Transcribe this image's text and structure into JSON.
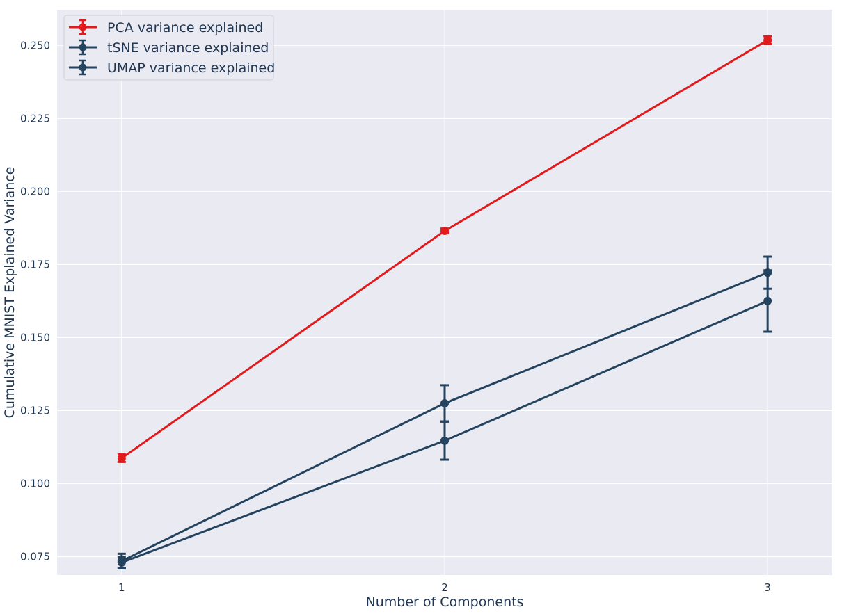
{
  "chart_data": {
    "type": "line",
    "xlabel": "Number of Components",
    "ylabel": "Cumulative MNIST Explained Variance",
    "x": [
      1,
      2,
      3
    ],
    "xticks": [
      "1",
      "2",
      "3"
    ],
    "xlim": [
      0.8,
      3.2
    ],
    "ylim": [
      0.0687,
      0.2622
    ],
    "yticks": [
      "0.075",
      "0.100",
      "0.125",
      "0.150",
      "0.175",
      "0.200",
      "0.225",
      "0.250"
    ],
    "yticks_values": [
      0.075,
      0.1,
      0.125,
      0.15,
      0.175,
      0.2,
      0.225,
      0.25
    ],
    "grid": true,
    "legend_position": "top-left",
    "series": [
      {
        "name": "PCA variance explained",
        "color": "#e31a1c",
        "values": [
          0.1087,
          0.1865,
          0.2518
        ],
        "errors": [
          0.0013,
          0.0008,
          0.0013
        ]
      },
      {
        "name": "tSNE variance explained",
        "color": "#24435f",
        "values": [
          0.0735,
          0.1275,
          0.1722
        ],
        "errors": [
          0.0025,
          0.0062,
          0.0055
        ]
      },
      {
        "name": "UMAP variance explained",
        "color": "#24435f",
        "values": [
          0.073,
          0.1147,
          0.1625
        ],
        "errors": [
          0.002,
          0.0065,
          0.0105
        ]
      }
    ]
  }
}
